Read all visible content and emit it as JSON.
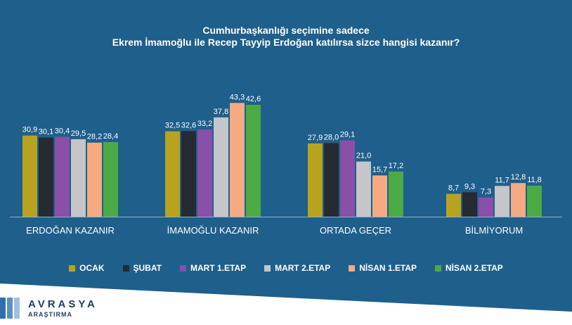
{
  "title": [
    "Cumhurbaşkanlığı seçimine sadece",
    "Ekrem İmamoğlu ile Recep Tayyip Erdoğan katılırsa sizce hangisi kazanır?"
  ],
  "brand": {
    "name": "AVRASYA",
    "sub": "ARAŞTIRMA"
  },
  "chart_data": {
    "type": "bar",
    "categories": [
      "ERDOĞAN KAZANIR",
      "İMAMOĞLU KAZANIR",
      "ORTADA GEÇER",
      "BİLMİYORUM"
    ],
    "series": [
      {
        "name": "OCAK",
        "color": "#b8a31f",
        "values": [
          30.9,
          32.5,
          27.9,
          8.7
        ],
        "labels": [
          "30,9",
          "32,5",
          "27,9",
          "8,7"
        ]
      },
      {
        "name": "ŞUBAT",
        "color": "#252a33",
        "values": [
          30.1,
          32.6,
          28.0,
          9.3
        ],
        "labels": [
          "30,1",
          "32,6",
          "28,0",
          "9,3"
        ]
      },
      {
        "name": "MART 1.ETAP",
        "color": "#8a4fa8",
        "values": [
          30.4,
          33.2,
          29.1,
          7.3
        ],
        "labels": [
          "30,4",
          "33,2",
          "29,1",
          "7,3"
        ]
      },
      {
        "name": "MART 2.ETAP",
        "color": "#c4c6c9",
        "values": [
          29.5,
          37.8,
          21.0,
          11.7
        ],
        "labels": [
          "29,5",
          "37,8",
          "21,0",
          "11,7"
        ]
      },
      {
        "name": "NİSAN 1.ETAP",
        "color": "#f5aa82",
        "values": [
          28.2,
          43.3,
          15.7,
          12.8
        ],
        "labels": [
          "28,2",
          "43,3",
          "15,7",
          "12,8"
        ]
      },
      {
        "name": "NİSAN 2.ETAP",
        "color": "#4caa45",
        "values": [
          28.4,
          42.6,
          17.2,
          11.8
        ],
        "labels": [
          "28,4",
          "42,6",
          "17,2",
          "11,8"
        ]
      }
    ],
    "ylim": [
      0,
      45
    ],
    "grid": false,
    "legend": "bottom"
  }
}
